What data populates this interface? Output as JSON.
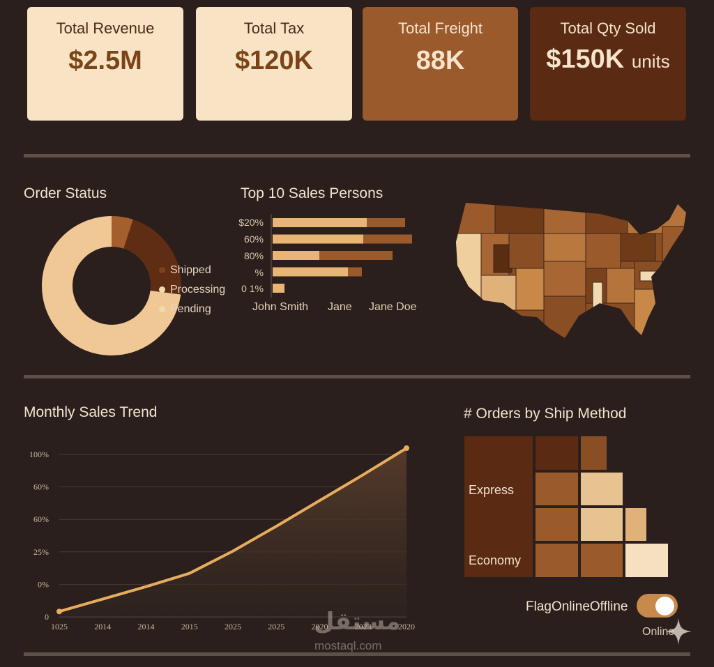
{
  "kpis": [
    {
      "title": "Total Revenue",
      "value": "$2.5M",
      "unit": ""
    },
    {
      "title": "Total Tax",
      "value": "$120K",
      "unit": ""
    },
    {
      "title": "Total Freight",
      "value": "88K",
      "unit": ""
    },
    {
      "title": "Total Qty Sold",
      "value": "$150K",
      "unit": "units"
    }
  ],
  "order_status": {
    "title": "Order Status",
    "legend": [
      {
        "label": "Shipped",
        "color": "#7b4418"
      },
      {
        "label": "Processing",
        "color": "#f2d9b0"
      },
      {
        "label": "Pending",
        "color": "#f2d9b0"
      }
    ]
  },
  "top_sales": {
    "title": "Top 10 Sales Persons",
    "ticks": [
      "$20%",
      "60%",
      "80%",
      "%",
      "0 1%"
    ],
    "x_labels": [
      "John Smith",
      "Jane",
      "Jane Doe"
    ]
  },
  "trend": {
    "title": "Monthly Sales Trend",
    "y_ticks": [
      "100%",
      "60%",
      "60%",
      "25%",
      "0%",
      "0"
    ],
    "x_ticks": [
      "1025",
      "2014",
      "2014",
      "2015",
      "2025",
      "2025",
      "2020",
      "2023",
      "2020"
    ]
  },
  "ship_method": {
    "title": "# Orders by Ship Method",
    "labels": [
      "Express",
      "Economy"
    ]
  },
  "toggle": {
    "label": "FlagOnlineOffline",
    "state": "Online"
  },
  "watermark": {
    "arabic": "مستقل",
    "latin": "mostaql.com"
  },
  "chart_data": [
    {
      "type": "pie",
      "title": "Order Status",
      "categories": [
        "Shipped",
        "Processing",
        "Pending"
      ],
      "values": [
        5,
        22,
        73
      ],
      "colors": [
        "#a45f2c",
        "#5e2d14",
        "#f0c896"
      ],
      "donut": true
    },
    {
      "type": "bar",
      "title": "Top 10 Sales Persons",
      "orientation": "horizontal",
      "stacked": true,
      "series": [
        {
          "values": [
            135,
            130,
            67,
            108,
            17
          ],
          "color": "#e8b574"
        },
        {
          "values": [
            55,
            70,
            105,
            20,
            0
          ],
          "color": "#9b5a2c"
        }
      ]
    },
    {
      "type": "area",
      "title": "Monthly Sales Trend",
      "x": [
        0,
        1,
        2,
        3,
        4,
        5,
        6,
        7,
        8
      ],
      "values": [
        6,
        20,
        34,
        49,
        74,
        102,
        131,
        160,
        190
      ],
      "ylim": [
        0,
        190
      ],
      "color": "#e8ac5e"
    }
  ]
}
